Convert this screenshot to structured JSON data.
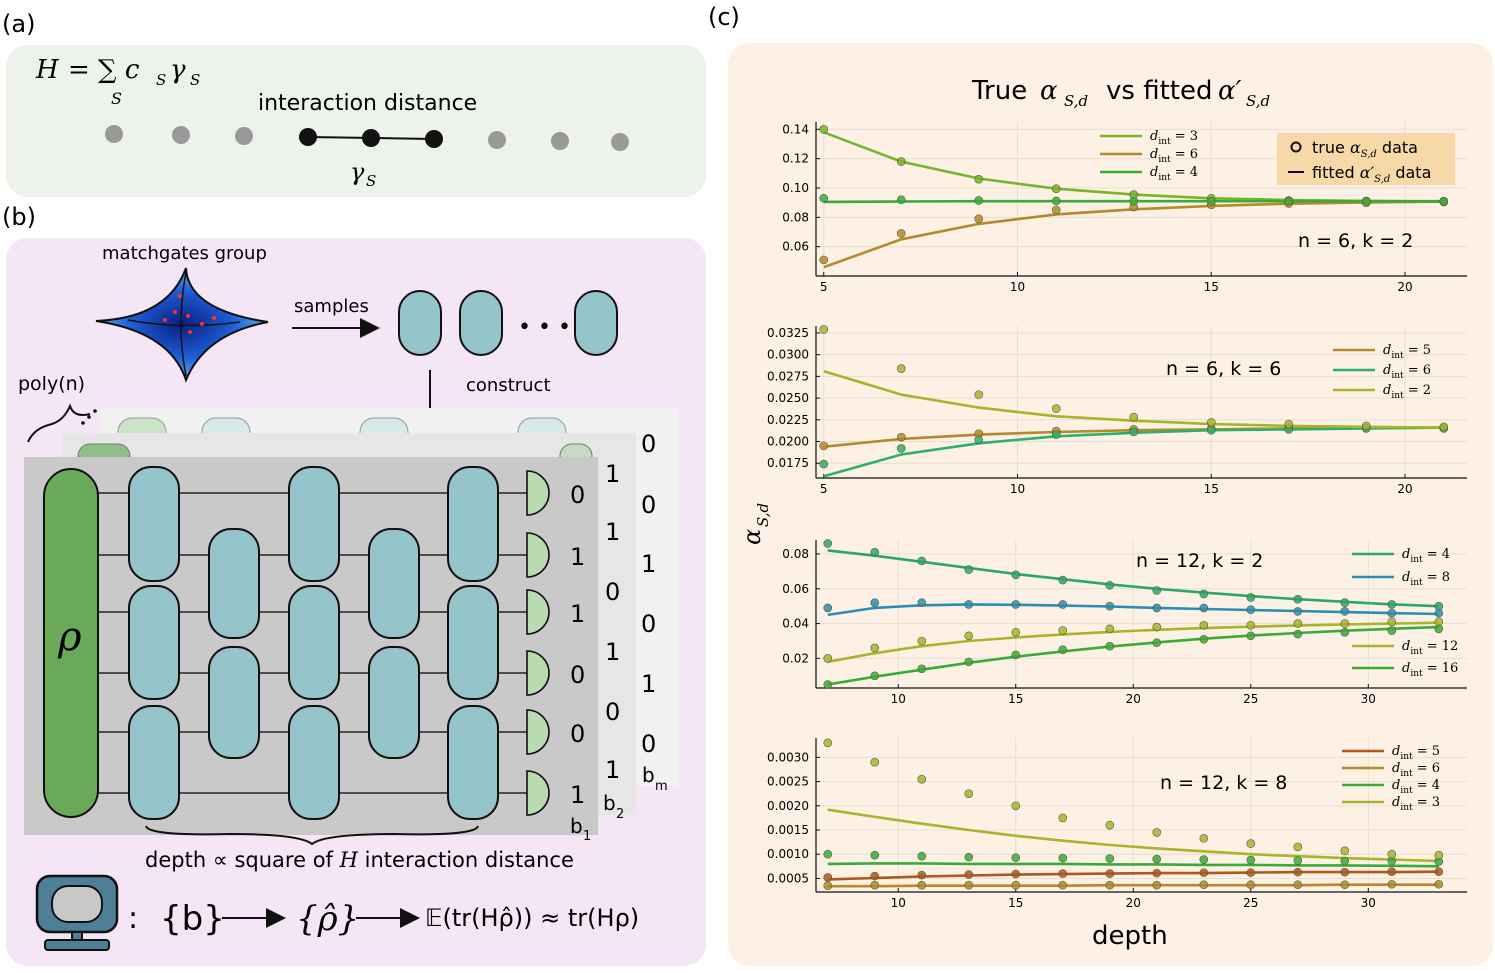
{
  "panel_a": {
    "label": "(a)",
    "eq_lhs": "H",
    "eq_rhs": "= ∑ c",
    "eq_sub_c": "S",
    "eq_gamma": "γ",
    "eq_sub_gamma": "S",
    "eq_sum_sub": "S",
    "interaction_label": "interaction distance",
    "gamma_label": "γ",
    "gamma_sub": "S"
  },
  "panel_b": {
    "label": "(b)",
    "matchgates_label": "matchgates group",
    "samples_label": "samples",
    "ellipsis": "• • •",
    "construct_label": "construct",
    "poly_label": "poly(n)",
    "rho_label": "ρ",
    "front_bits": [
      "0",
      "1",
      "1",
      "0",
      "0",
      "1"
    ],
    "mid_bits": [
      "1",
      "1",
      "0",
      "1",
      "0",
      "1"
    ],
    "back_bits": [
      "0",
      "0",
      "1",
      "0",
      "1",
      "0"
    ],
    "b1": "b",
    "b1_sub": "1",
    "b2": "b",
    "b2_sub": "2",
    "bm": "b",
    "bm_sub": "m",
    "depth_caption_pre": "depth ∝ square of",
    "depth_caption_H": "H",
    "depth_caption_post": "interaction distance",
    "formula_colon": ":",
    "formula_b": "{b}",
    "formula_rhohat": "{ρ̂}",
    "formula_expect": "𝔼(tr(Hρ̂)) ≈ tr(Hρ)"
  },
  "panel_c": {
    "label": "(c)",
    "title_pre": "True",
    "title_alpha": "α",
    "title_sub": "S,d",
    "title_mid": "vs fitted",
    "title_alpha2": "α′",
    "title_sub2": "S,d",
    "ylabel": "α",
    "ylabel_sub": "S,d",
    "xlabel": "depth",
    "legend_true": "true",
    "legend_true_alpha": "α",
    "legend_true_sub": "S,d",
    "legend_true_suffix": "data",
    "legend_fit": "fitted",
    "legend_fit_alpha": "α′",
    "legend_fit_sub": "S,d",
    "legend_fit_suffix": "data"
  },
  "chart_data": [
    {
      "type": "line",
      "annotation": "n = 6,  k = 2",
      "xlim": [
        4.8,
        21.6
      ],
      "ylim": [
        0.04,
        0.145
      ],
      "xticks": [
        5,
        10,
        15,
        20
      ],
      "yticks": [
        0.06,
        0.08,
        0.1,
        0.12,
        0.14
      ],
      "ytick_labels": [
        "0.06",
        "0.08",
        "0.10",
        "0.12",
        "0.14"
      ],
      "series": [
        {
          "name": "d_int = 3",
          "dint": "3",
          "color": "#77b52a",
          "x": [
            5,
            7,
            9,
            11,
            13,
            15,
            17,
            19,
            21
          ],
          "true": [
            0.14,
            0.118,
            0.106,
            0.0995,
            0.0955,
            0.093,
            0.0915,
            0.0912,
            0.091
          ],
          "fit": [
            0.138,
            0.118,
            0.1065,
            0.0995,
            0.0955,
            0.093,
            0.0918,
            0.0912,
            0.0908
          ]
        },
        {
          "name": "d_int = 6",
          "dint": "6",
          "color": "#b38a2c",
          "x": [
            5,
            7,
            9,
            11,
            13,
            15,
            17,
            19,
            21
          ],
          "true": [
            0.051,
            0.069,
            0.079,
            0.085,
            0.087,
            0.0885,
            0.0895,
            0.09,
            0.0905
          ],
          "fit": [
            0.046,
            0.065,
            0.0755,
            0.082,
            0.0855,
            0.0878,
            0.0893,
            0.0902,
            0.0907
          ]
        },
        {
          "name": "d_int = 4",
          "dint": "4",
          "color": "#3aab3a",
          "x": [
            5,
            7,
            9,
            11,
            13,
            15,
            17,
            19,
            21
          ],
          "true": [
            0.093,
            0.092,
            0.0915,
            0.0912,
            0.091,
            0.091,
            0.091,
            0.091,
            0.091
          ],
          "fit": [
            0.0905,
            0.0908,
            0.091,
            0.091,
            0.091,
            0.091,
            0.091,
            0.091,
            0.091
          ]
        }
      ]
    },
    {
      "type": "line",
      "annotation": "n = 6,  k = 6",
      "xlim": [
        4.8,
        21.6
      ],
      "ylim": [
        0.0158,
        0.0333
      ],
      "xticks": [
        5,
        10,
        15,
        20
      ],
      "yticks": [
        0.0175,
        0.02,
        0.0225,
        0.025,
        0.0275,
        0.03,
        0.0325
      ],
      "ytick_labels": [
        "0.0175",
        "0.0200",
        "0.0225",
        "0.0250",
        "0.0275",
        "0.0300",
        "0.0325"
      ],
      "series": [
        {
          "name": "d_int = 5",
          "dint": "5",
          "color": "#b38a2c",
          "x": [
            5,
            7,
            9,
            11,
            13,
            15,
            17,
            19,
            21
          ],
          "true": [
            0.0195,
            0.0205,
            0.0209,
            0.0212,
            0.0214,
            0.0215,
            0.0216,
            0.0216,
            0.0216
          ],
          "fit": [
            0.0194,
            0.0203,
            0.0208,
            0.0211,
            0.0213,
            0.0214,
            0.0215,
            0.0216,
            0.0216
          ]
        },
        {
          "name": "d_int = 6",
          "dint": "6",
          "color": "#2eb06a",
          "x": [
            5,
            7,
            9,
            11,
            13,
            15,
            17,
            19,
            21
          ],
          "true": [
            0.0174,
            0.0192,
            0.0202,
            0.0208,
            0.0211,
            0.0213,
            0.0214,
            0.0215,
            0.0215
          ],
          "fit": [
            0.016,
            0.0185,
            0.0198,
            0.0206,
            0.021,
            0.0213,
            0.0214,
            0.0215,
            0.0216
          ]
        },
        {
          "name": "d_int = 2",
          "dint": "2",
          "color": "#a8b42b",
          "x": [
            5,
            7,
            9,
            11,
            13,
            15,
            17,
            19,
            21
          ],
          "true": [
            0.0329,
            0.0284,
            0.0254,
            0.0238,
            0.0228,
            0.0222,
            0.022,
            0.0218,
            0.0217
          ],
          "fit": [
            0.0281,
            0.0254,
            0.0239,
            0.0229,
            0.0224,
            0.022,
            0.0218,
            0.0217,
            0.0216
          ]
        }
      ]
    },
    {
      "type": "line",
      "annotation": "n = 12,  k = 2",
      "xlim": [
        6.5,
        34.2
      ],
      "ylim": [
        0.003,
        0.088
      ],
      "xticks": [
        10,
        15,
        20,
        25,
        30
      ],
      "yticks": [
        0.02,
        0.04,
        0.06,
        0.08
      ],
      "ytick_labels": [
        "0.02",
        "0.04",
        "0.06",
        "0.08"
      ],
      "series": [
        {
          "name": "d_int = 4",
          "dint": "4",
          "color": "#2aa86a",
          "x": [
            7,
            9,
            11,
            13,
            15,
            17,
            19,
            21,
            23,
            25,
            27,
            29,
            31,
            33
          ],
          "true": [
            0.086,
            0.081,
            0.076,
            0.071,
            0.068,
            0.065,
            0.062,
            0.059,
            0.057,
            0.055,
            0.054,
            0.052,
            0.051,
            0.05
          ],
          "fit": [
            0.082,
            0.079,
            0.0755,
            0.072,
            0.0685,
            0.0655,
            0.0625,
            0.06,
            0.0578,
            0.0558,
            0.054,
            0.0525,
            0.051,
            0.05
          ]
        },
        {
          "name": "d_int = 8",
          "dint": "8",
          "color": "#2b8fb3",
          "x": [
            7,
            9,
            11,
            13,
            15,
            17,
            19,
            21,
            23,
            25,
            27,
            29,
            31,
            33
          ],
          "true": [
            0.049,
            0.052,
            0.052,
            0.051,
            0.051,
            0.051,
            0.05,
            0.049,
            0.049,
            0.048,
            0.047,
            0.047,
            0.046,
            0.046
          ],
          "fit": [
            0.045,
            0.049,
            0.0505,
            0.051,
            0.0508,
            0.0503,
            0.0498,
            0.049,
            0.0484,
            0.0478,
            0.0472,
            0.0466,
            0.046,
            0.0455
          ]
        },
        {
          "name": "d_int = 12",
          "dint": "12",
          "color": "#a8b42b",
          "x": [
            7,
            9,
            11,
            13,
            15,
            17,
            19,
            21,
            23,
            25,
            27,
            29,
            31,
            33
          ],
          "true": [
            0.02,
            0.026,
            0.03,
            0.033,
            0.035,
            0.036,
            0.037,
            0.038,
            0.039,
            0.039,
            0.04,
            0.04,
            0.041,
            0.041
          ],
          "fit": [
            0.018,
            0.023,
            0.027,
            0.03,
            0.032,
            0.0338,
            0.0352,
            0.0364,
            0.0374,
            0.0382,
            0.0389,
            0.0395,
            0.04,
            0.0405
          ]
        },
        {
          "name": "d_int = 16",
          "dint": "16",
          "color": "#3aab3a",
          "x": [
            7,
            9,
            11,
            13,
            15,
            17,
            19,
            21,
            23,
            25,
            27,
            29,
            31,
            33
          ],
          "true": [
            0.005,
            0.01,
            0.014,
            0.018,
            0.022,
            0.025,
            0.027,
            0.029,
            0.031,
            0.033,
            0.034,
            0.035,
            0.036,
            0.037
          ],
          "fit": [
            0.005,
            0.0095,
            0.0135,
            0.0175,
            0.021,
            0.024,
            0.0268,
            0.0292,
            0.0313,
            0.0331,
            0.0346,
            0.0359,
            0.037,
            0.038
          ]
        }
      ]
    },
    {
      "type": "line",
      "annotation": "n = 12,  k = 8",
      "xlim": [
        6.5,
        34.2
      ],
      "ylim": [
        0.00022,
        0.0034
      ],
      "xticks": [
        10,
        15,
        20,
        25,
        30
      ],
      "yticks": [
        0.0005,
        0.001,
        0.0015,
        0.002,
        0.0025,
        0.003
      ],
      "ytick_labels": [
        "0.0005",
        "0.0010",
        "0.0015",
        "0.0020",
        "0.0025",
        "0.0030"
      ],
      "series": [
        {
          "name": "d_int = 5",
          "dint": "5",
          "color": "#b0561e",
          "x": [
            7,
            9,
            11,
            13,
            15,
            17,
            19,
            21,
            23,
            25,
            27,
            29,
            31,
            33
          ],
          "true": [
            0.00052,
            0.00055,
            0.00057,
            0.00058,
            0.00059,
            0.0006,
            0.0006,
            0.00061,
            0.00062,
            0.00062,
            0.00063,
            0.00063,
            0.00064,
            0.00064
          ],
          "fit": [
            0.00048,
            0.00051,
            0.00054,
            0.00056,
            0.00058,
            0.00059,
            0.0006,
            0.00061,
            0.00061,
            0.00062,
            0.00063,
            0.00063,
            0.00063,
            0.00064
          ]
        },
        {
          "name": "d_int = 6",
          "dint": "6",
          "color": "#b38a2c",
          "x": [
            7,
            9,
            11,
            13,
            15,
            17,
            19,
            21,
            23,
            25,
            27,
            29,
            31,
            33
          ],
          "true": [
            0.00035,
            0.00036,
            0.00036,
            0.00036,
            0.00036,
            0.00036,
            0.00036,
            0.00036,
            0.00037,
            0.00037,
            0.00037,
            0.00037,
            0.00038,
            0.00038
          ],
          "fit": [
            0.00034,
            0.00034,
            0.00035,
            0.00035,
            0.00035,
            0.00035,
            0.00036,
            0.00036,
            0.00036,
            0.00036,
            0.00036,
            0.00037,
            0.00037,
            0.00037
          ]
        },
        {
          "name": "d_int = 4",
          "dint": "4",
          "color": "#3aab3a",
          "x": [
            7,
            9,
            11,
            13,
            15,
            17,
            19,
            21,
            23,
            25,
            27,
            29,
            31,
            33
          ],
          "true": [
            0.001,
            0.00098,
            0.00096,
            0.00094,
            0.00093,
            0.00092,
            0.00091,
            0.0009,
            0.00089,
            0.00088,
            0.00087,
            0.00086,
            0.00086,
            0.00085
          ],
          "fit": [
            0.0008,
            0.00081,
            0.00081,
            0.0008,
            0.0008,
            0.0008,
            0.00079,
            0.00079,
            0.00078,
            0.00078,
            0.00077,
            0.00077,
            0.00076,
            0.00075
          ]
        },
        {
          "name": "d_int = 3",
          "dint": "3",
          "color": "#a8b42b",
          "x": [
            7,
            9,
            11,
            13,
            15,
            17,
            19,
            21,
            23,
            25,
            27,
            29,
            31,
            33
          ],
          "true": [
            0.0033,
            0.0029,
            0.00255,
            0.00225,
            0.002,
            0.00175,
            0.0016,
            0.00145,
            0.00133,
            0.00122,
            0.00115,
            0.00107,
            0.001,
            0.00098
          ],
          "fit": [
            0.00192,
            0.00177,
            0.00163,
            0.0015,
            0.00138,
            0.00128,
            0.00119,
            0.00112,
            0.00106,
            0.001,
            0.00096,
            0.00092,
            0.00089,
            0.00086
          ]
        }
      ]
    }
  ]
}
